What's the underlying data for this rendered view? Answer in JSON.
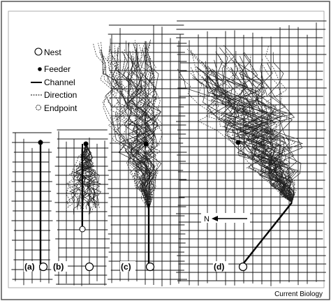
{
  "legend": {
    "nest": "Nest",
    "feeder": "Feeder",
    "channel": "Channel",
    "direction": "Direction",
    "endpoint": "Endpoint"
  },
  "panels": {
    "a": "(a)",
    "b": "(b)",
    "c": "(c)",
    "d": "(d)"
  },
  "compass_label": "N",
  "credit": "Current Biology"
}
